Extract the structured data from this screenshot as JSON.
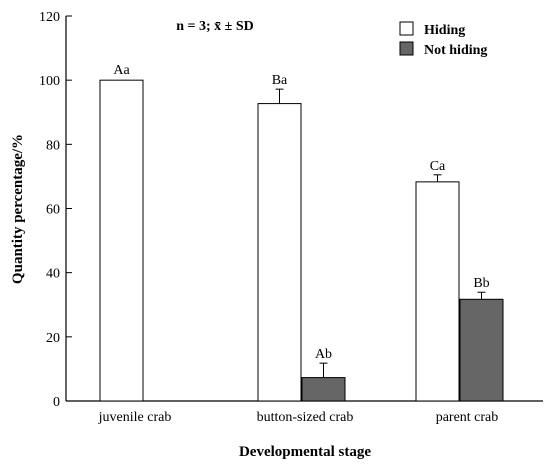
{
  "chart_data": {
    "type": "bar",
    "annotation": "n = 3; x̄ ± SD",
    "xlabel": "Developmental stage",
    "ylabel": "Quantity percentage/%",
    "categories": [
      "juvenile crab",
      "button-sized crab",
      "parent crab"
    ],
    "ylim": [
      0,
      120
    ],
    "yticks": [
      "0",
      "20",
      "40",
      "60",
      "80",
      "100",
      "120"
    ],
    "grid": false,
    "legend_position": "top-right",
    "series": [
      {
        "name": "Hiding",
        "color": "#ffffff",
        "values": [
          100,
          92.7,
          68.3
        ],
        "errors": [
          0,
          4.5,
          2.2
        ],
        "labels": [
          "Aa",
          "Ba",
          "Ca"
        ]
      },
      {
        "name": "Not hiding",
        "color": "#666666",
        "values": [
          0,
          7.3,
          31.7
        ],
        "errors": [
          0,
          4.5,
          2.2
        ],
        "labels": [
          "",
          "Ab",
          "Bb"
        ]
      }
    ]
  }
}
